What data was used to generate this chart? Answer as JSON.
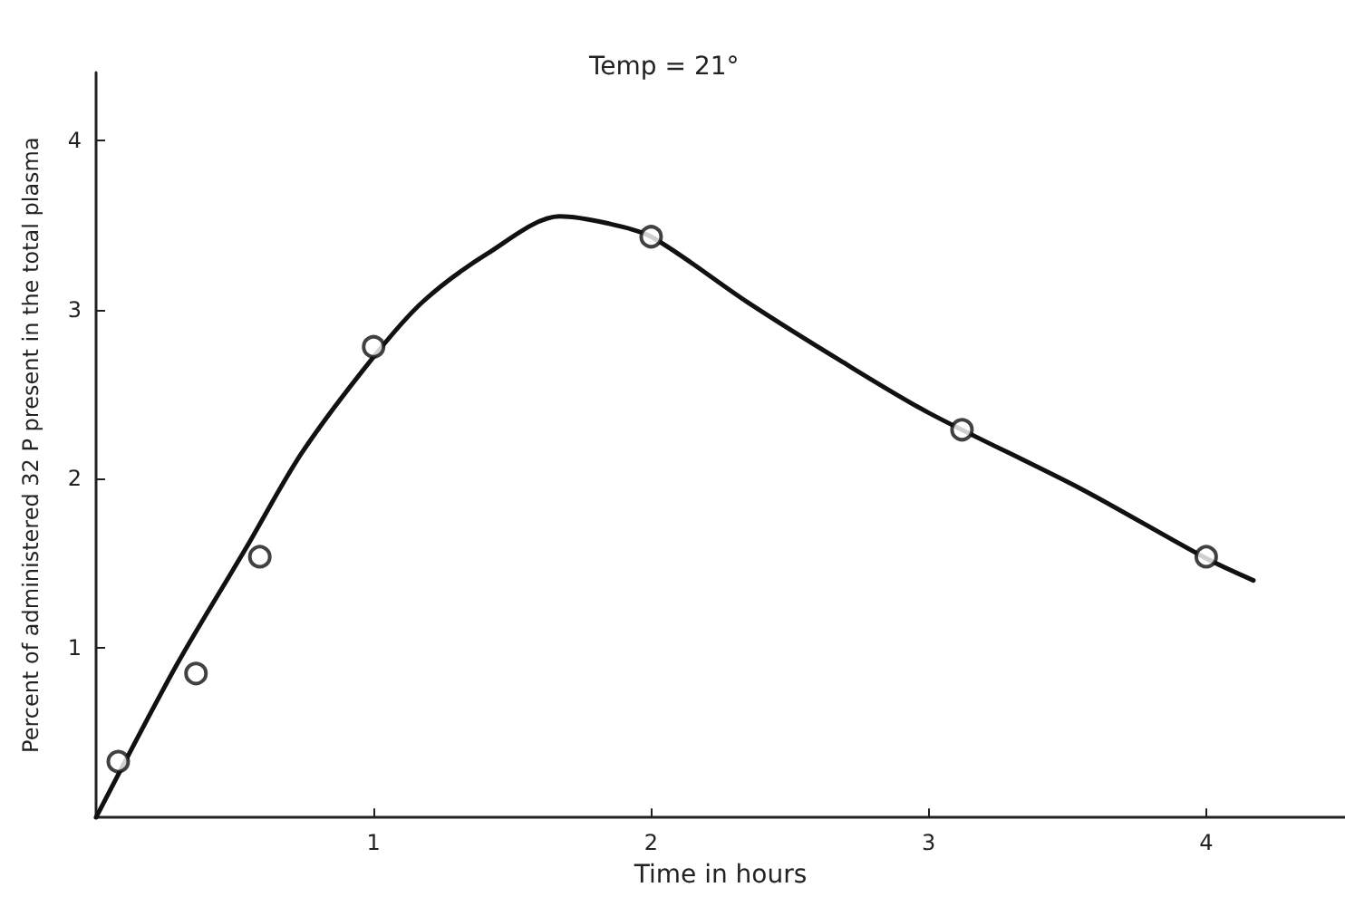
{
  "chart_data": {
    "type": "scatter",
    "xlabel": "Time in hours",
    "ylabel": "Percent of administered 32 P present in the total plasma",
    "annotations": [
      "Temp = 21°"
    ],
    "series": [
      {
        "color": "#111111",
        "marker": "circle",
        "x": [
          0.08,
          0.36,
          0.59,
          1.0,
          2.0,
          3.12,
          4.0
        ],
        "values": [
          0.33,
          0.85,
          1.54,
          2.78,
          3.43,
          2.29,
          1.54
        ]
      },
      {
        "type": "line",
        "color": "#111111",
        "marker": "none",
        "line_style": "solid",
        "x": [
          0,
          0.29,
          0.54,
          0.74,
          1.0,
          1.18,
          1.41,
          1.67,
          1.84,
          2.0,
          2.35,
          2.68,
          3.0,
          3.55,
          4.0,
          4.17
        ],
        "values": [
          0,
          0.9,
          1.59,
          2.15,
          2.72,
          3.05,
          3.33,
          3.55,
          3.51,
          3.43,
          3.04,
          2.7,
          2.39,
          1.94,
          1.53,
          1.4
        ]
      }
    ],
    "xlim": [
      0,
      4.5
    ],
    "xticks": [
      1,
      2,
      3,
      4
    ],
    "ylim": [
      0,
      4.4
    ],
    "yticks": [
      1,
      2,
      3,
      4
    ],
    "grid": false
  }
}
